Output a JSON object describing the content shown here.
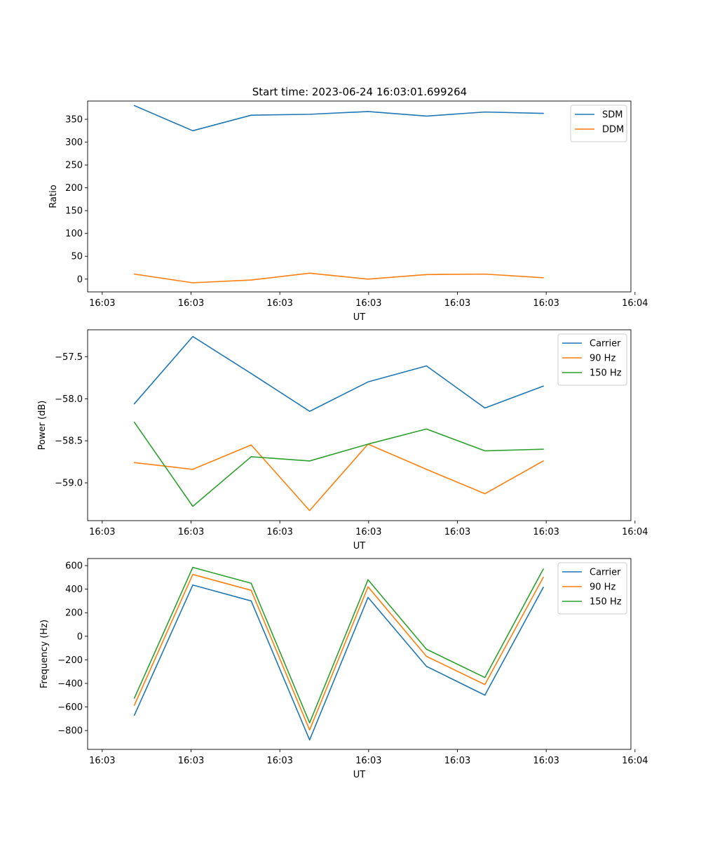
{
  "figure": {
    "title": "Start time: 2023-06-24 16:03:01.699264",
    "colors": {
      "blue": "#1f77b4",
      "orange": "#ff7f0e",
      "green": "#2ca02c"
    }
  },
  "chart_data": [
    {
      "type": "line",
      "title": "Start time: 2023-06-24 16:03:01.699264",
      "xlabel": "UT",
      "ylabel": "Ratio",
      "x": [
        1,
        2,
        3,
        4,
        5,
        6,
        7,
        8
      ],
      "xlim": [
        0.2,
        9.5
      ],
      "xticks": [
        0.45,
        1.97,
        3.49,
        5.01,
        6.53,
        8.05,
        9.57
      ],
      "xticklabels": [
        "16:03",
        "16:03",
        "16:03",
        "16:03",
        "16:03",
        "16:03",
        "16:04"
      ],
      "ylim": [
        -28,
        390
      ],
      "yticks": [
        0,
        50,
        100,
        150,
        200,
        250,
        300,
        350
      ],
      "yticklabels": [
        "0",
        "50",
        "100",
        "150",
        "200",
        "250",
        "300",
        "350"
      ],
      "legend": "top-right",
      "series": [
        {
          "name": "SDM",
          "color": "#1f77b4",
          "values": [
            380,
            325,
            359,
            361,
            367,
            357,
            366,
            363
          ]
        },
        {
          "name": "DDM",
          "color": "#ff7f0e",
          "values": [
            11,
            -8,
            -2,
            13,
            0,
            10,
            11,
            3
          ]
        }
      ]
    },
    {
      "type": "line",
      "title": "",
      "xlabel": "UT",
      "ylabel": "Power (dB)",
      "x": [
        1,
        2,
        3,
        4,
        5,
        6,
        7,
        8
      ],
      "xlim": [
        0.2,
        9.5
      ],
      "xticks": [
        0.45,
        1.97,
        3.49,
        5.01,
        6.53,
        8.05,
        9.57
      ],
      "xticklabels": [
        "16:03",
        "16:03",
        "16:03",
        "16:03",
        "16:03",
        "16:03",
        "16:04"
      ],
      "ylim": [
        -59.45,
        -57.18
      ],
      "yticks": [
        -57.5,
        -58.0,
        -58.5,
        -59.0
      ],
      "yticklabels": [
        "−57.5",
        "−58.0",
        "−58.5",
        "−59.0"
      ],
      "legend": "top-right",
      "series": [
        {
          "name": "Carrier",
          "color": "#1f77b4",
          "values": [
            -58.06,
            -57.26,
            -57.7,
            -58.15,
            -57.8,
            -57.61,
            -58.11,
            -57.85
          ]
        },
        {
          "name": "90 Hz",
          "color": "#ff7f0e",
          "values": [
            -58.76,
            -58.84,
            -58.55,
            -59.33,
            -58.54,
            -58.84,
            -59.13,
            -58.74
          ]
        },
        {
          "name": "150 Hz",
          "color": "#2ca02c",
          "values": [
            -58.28,
            -59.28,
            -58.69,
            -58.74,
            -58.54,
            -58.36,
            -58.62,
            -58.6
          ]
        }
      ]
    },
    {
      "type": "line",
      "title": "",
      "xlabel": "UT",
      "ylabel": "Frequency (Hz)",
      "x": [
        1,
        2,
        3,
        4,
        5,
        6,
        7,
        8
      ],
      "xlim": [
        0.2,
        9.5
      ],
      "xticks": [
        0.45,
        1.97,
        3.49,
        5.01,
        6.53,
        8.05,
        9.57
      ],
      "xticklabels": [
        "16:03",
        "16:03",
        "16:03",
        "16:03",
        "16:03",
        "16:03",
        "16:04"
      ],
      "ylim": [
        -960,
        660
      ],
      "yticks": [
        600,
        400,
        200,
        0,
        -200,
        -400,
        -600,
        -800
      ],
      "yticklabels": [
        "600",
        "400",
        "200",
        "0",
        "−200",
        "−400",
        "−600",
        "−800"
      ],
      "legend": "top-right",
      "series": [
        {
          "name": "Carrier",
          "color": "#1f77b4",
          "values": [
            -670,
            435,
            300,
            -880,
            330,
            -255,
            -500,
            415
          ]
        },
        {
          "name": "90 Hz",
          "color": "#ff7f0e",
          "values": [
            -585,
            525,
            390,
            -795,
            420,
            -170,
            -410,
            500
          ]
        },
        {
          "name": "150 Hz",
          "color": "#2ca02c",
          "values": [
            -525,
            585,
            450,
            -735,
            480,
            -110,
            -350,
            570
          ]
        }
      ]
    }
  ]
}
